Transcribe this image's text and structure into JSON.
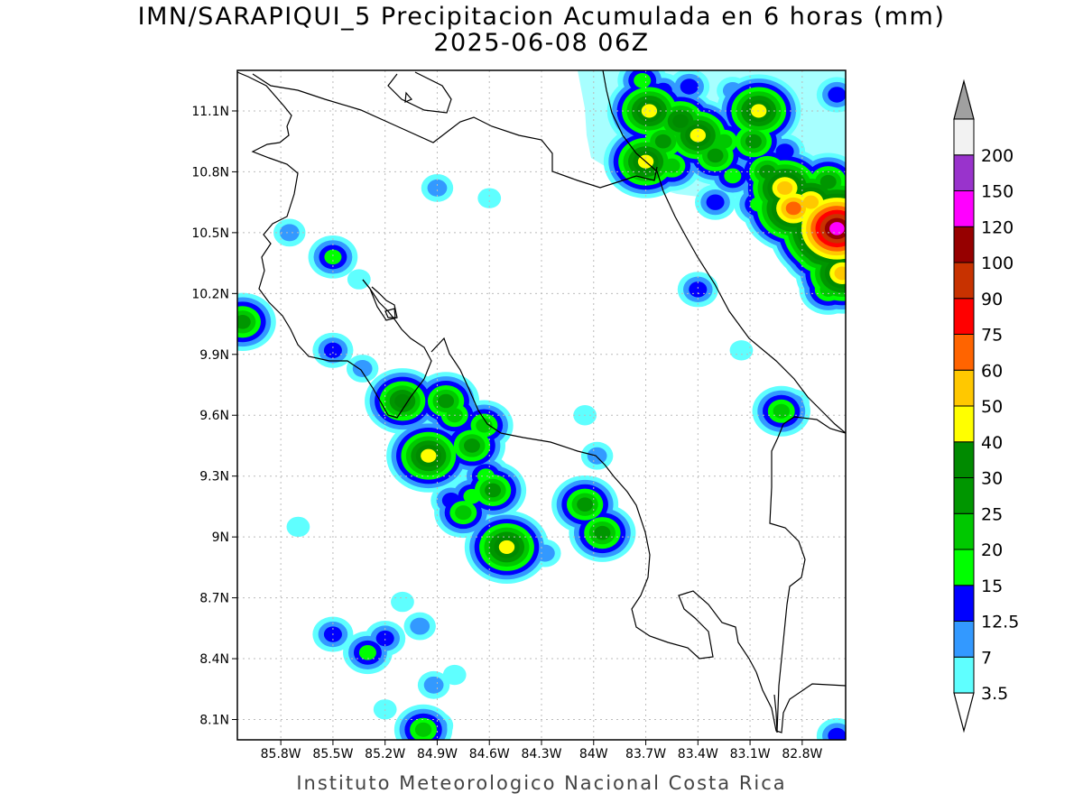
{
  "title": "IMN/SARAPIQUI_5 Precipitacion Acumulada en 6 horas (mm)",
  "subtitle": "2025-06-08 06Z",
  "footer": "Instituto Meteorologico Nacional Costa Rica",
  "map": {
    "lon_range": [
      -86.05,
      -82.55
    ],
    "lat_range": [
      8.0,
      11.3
    ],
    "x_ticks": [
      {
        "value": -85.8,
        "label": "85.8W"
      },
      {
        "value": -85.5,
        "label": "85.5W"
      },
      {
        "value": -85.2,
        "label": "85.2W"
      },
      {
        "value": -84.9,
        "label": "84.9W"
      },
      {
        "value": -84.6,
        "label": "84.6W"
      },
      {
        "value": -84.3,
        "label": "84.3W"
      },
      {
        "value": -84.0,
        "label": "84W"
      },
      {
        "value": -83.7,
        "label": "83.7W"
      },
      {
        "value": -83.4,
        "label": "83.4W"
      },
      {
        "value": -83.1,
        "label": "83.1W"
      },
      {
        "value": -82.8,
        "label": "82.8W"
      }
    ],
    "y_ticks": [
      {
        "value": 11.1,
        "label": "11.1N"
      },
      {
        "value": 10.8,
        "label": "10.8N"
      },
      {
        "value": 10.5,
        "label": "10.5N"
      },
      {
        "value": 10.2,
        "label": "10.2N"
      },
      {
        "value": 9.9,
        "label": "9.9N"
      },
      {
        "value": 9.6,
        "label": "9.6N"
      },
      {
        "value": 9.3,
        "label": "9.3N"
      },
      {
        "value": 9.0,
        "label": "9N"
      },
      {
        "value": 8.7,
        "label": "8.7N"
      },
      {
        "value": 8.4,
        "label": "8.4N"
      },
      {
        "value": 8.1,
        "label": "8.1N"
      }
    ],
    "grid": true
  },
  "colorbar": {
    "levels": [
      {
        "label": "3.5",
        "color": "#5fffff"
      },
      {
        "label": "7",
        "color": "#3399ff"
      },
      {
        "label": "12.5",
        "color": "#0000ff"
      },
      {
        "label": "15",
        "color": "#00ff00"
      },
      {
        "label": "20",
        "color": "#00c800"
      },
      {
        "label": "25",
        "color": "#009600"
      },
      {
        "label": "30",
        "color": "#008a00"
      },
      {
        "label": "40",
        "color": "#ffff00"
      },
      {
        "label": "50",
        "color": "#ffc800"
      },
      {
        "label": "60",
        "color": "#ff6400"
      },
      {
        "label": "75",
        "color": "#ff0000"
      },
      {
        "label": "90",
        "color": "#c83200"
      },
      {
        "label": "100",
        "color": "#960000"
      },
      {
        "label": "120",
        "color": "#ff00ff"
      },
      {
        "label": "150",
        "color": "#9933cc"
      },
      {
        "label": "200",
        "color": "#f2f2f2"
      }
    ],
    "top_arrow_color": "#a0a0a0",
    "bottom_arrow_color": "#ffffff"
  },
  "precip_cells": [
    {
      "lon": -86.02,
      "lat": 10.06,
      "peak": 25
    },
    {
      "lon": -85.75,
      "lat": 10.5,
      "peak": 7
    },
    {
      "lon": -85.5,
      "lat": 10.38,
      "peak": 15
    },
    {
      "lon": -85.35,
      "lat": 10.27,
      "peak": 3.5
    },
    {
      "lon": -85.5,
      "lat": 9.92,
      "peak": 12.5
    },
    {
      "lon": -85.33,
      "lat": 9.83,
      "peak": 7
    },
    {
      "lon": -84.9,
      "lat": 10.72,
      "peak": 7
    },
    {
      "lon": -84.6,
      "lat": 10.67,
      "peak": 3.5
    },
    {
      "lon": -85.1,
      "lat": 9.67,
      "peak": 30
    },
    {
      "lon": -84.85,
      "lat": 9.67,
      "peak": 25
    },
    {
      "lon": -84.8,
      "lat": 9.6,
      "peak": 20
    },
    {
      "lon": -84.63,
      "lat": 9.55,
      "peak": 20
    },
    {
      "lon": -84.7,
      "lat": 9.45,
      "peak": 25
    },
    {
      "lon": -84.95,
      "lat": 9.4,
      "peak": 40
    },
    {
      "lon": -84.62,
      "lat": 9.3,
      "peak": 15
    },
    {
      "lon": -84.58,
      "lat": 9.23,
      "peak": 25
    },
    {
      "lon": -84.7,
      "lat": 9.2,
      "peak": 15
    },
    {
      "lon": -84.82,
      "lat": 9.18,
      "peak": 12.5
    },
    {
      "lon": -84.75,
      "lat": 9.12,
      "peak": 20
    },
    {
      "lon": -84.5,
      "lat": 8.95,
      "peak": 40
    },
    {
      "lon": -84.05,
      "lat": 9.16,
      "peak": 25
    },
    {
      "lon": -83.95,
      "lat": 9.02,
      "peak": 25
    },
    {
      "lon": -83.98,
      "lat": 9.4,
      "peak": 7
    },
    {
      "lon": -84.05,
      "lat": 9.6,
      "peak": 3.5
    },
    {
      "lon": -85.5,
      "lat": 8.52,
      "peak": 12.5
    },
    {
      "lon": -85.3,
      "lat": 8.43,
      "peak": 15
    },
    {
      "lon": -85.2,
      "lat": 8.5,
      "peak": 12.5
    },
    {
      "lon": -85.0,
      "lat": 8.56,
      "peak": 7
    },
    {
      "lon": -84.92,
      "lat": 8.27,
      "peak": 7
    },
    {
      "lon": -84.8,
      "lat": 8.32,
      "peak": 3.5
    },
    {
      "lon": -84.98,
      "lat": 8.05,
      "peak": 20
    },
    {
      "lon": -84.9,
      "lat": 8.07,
      "peak": 7
    },
    {
      "lon": -85.7,
      "lat": 9.05,
      "peak": 3.5
    },
    {
      "lon": -85.1,
      "lat": 8.68,
      "peak": 3.5
    },
    {
      "lon": -84.28,
      "lat": 8.92,
      "peak": 7
    },
    {
      "lon": -85.2,
      "lat": 8.15,
      "peak": 3.5
    },
    {
      "lon": -83.4,
      "lat": 10.22,
      "peak": 12.5
    },
    {
      "lon": -83.15,
      "lat": 9.92,
      "peak": 3.5
    },
    {
      "lon": -82.92,
      "lat": 9.62,
      "peak": 20
    },
    {
      "lon": -82.85,
      "lat": 9.66,
      "peak": 7
    },
    {
      "lon": -82.65,
      "lat": 10.22,
      "peak": 20
    },
    {
      "lon": -82.6,
      "lat": 8.02,
      "peak": 12.5
    },
    {
      "lon": -83.72,
      "lat": 11.25,
      "peak": 15
    },
    {
      "lon": -83.6,
      "lat": 11.2,
      "peak": 12.5
    },
    {
      "lon": -83.68,
      "lat": 11.1,
      "peak": 40
    },
    {
      "lon": -83.5,
      "lat": 11.05,
      "peak": 30
    },
    {
      "lon": -83.4,
      "lat": 10.98,
      "peak": 40
    },
    {
      "lon": -83.6,
      "lat": 10.95,
      "peak": 25
    },
    {
      "lon": -83.7,
      "lat": 10.85,
      "peak": 40
    },
    {
      "lon": -83.55,
      "lat": 10.83,
      "peak": 20
    },
    {
      "lon": -83.3,
      "lat": 10.88,
      "peak": 25
    },
    {
      "lon": -83.25,
      "lat": 10.95,
      "peak": 20
    },
    {
      "lon": -83.05,
      "lat": 11.1,
      "peak": 40
    },
    {
      "lon": -83.08,
      "lat": 10.95,
      "peak": 25
    },
    {
      "lon": -83.2,
      "lat": 10.78,
      "peak": 15
    },
    {
      "lon": -83.0,
      "lat": 10.8,
      "peak": 25
    },
    {
      "lon": -82.9,
      "lat": 10.72,
      "peak": 50
    },
    {
      "lon": -82.85,
      "lat": 10.62,
      "peak": 60
    },
    {
      "lon": -82.75,
      "lat": 10.65,
      "peak": 50
    },
    {
      "lon": -82.63,
      "lat": 10.55,
      "peak": 90
    },
    {
      "lon": -82.6,
      "lat": 10.52,
      "peak": 120
    },
    {
      "lon": -82.7,
      "lat": 10.4,
      "peak": 30
    },
    {
      "lon": -82.57,
      "lat": 10.3,
      "peak": 50
    },
    {
      "lon": -82.65,
      "lat": 10.75,
      "peak": 25
    },
    {
      "lon": -83.05,
      "lat": 10.64,
      "peak": 15
    },
    {
      "lon": -82.9,
      "lat": 10.9,
      "peak": 12.5
    },
    {
      "lon": -83.3,
      "lat": 10.65,
      "peak": 12.5
    },
    {
      "lon": -83.45,
      "lat": 11.22,
      "peak": 12.5
    },
    {
      "lon": -83.2,
      "lat": 11.2,
      "peak": 7
    },
    {
      "lon": -82.6,
      "lat": 11.18,
      "peak": 12.5
    }
  ]
}
